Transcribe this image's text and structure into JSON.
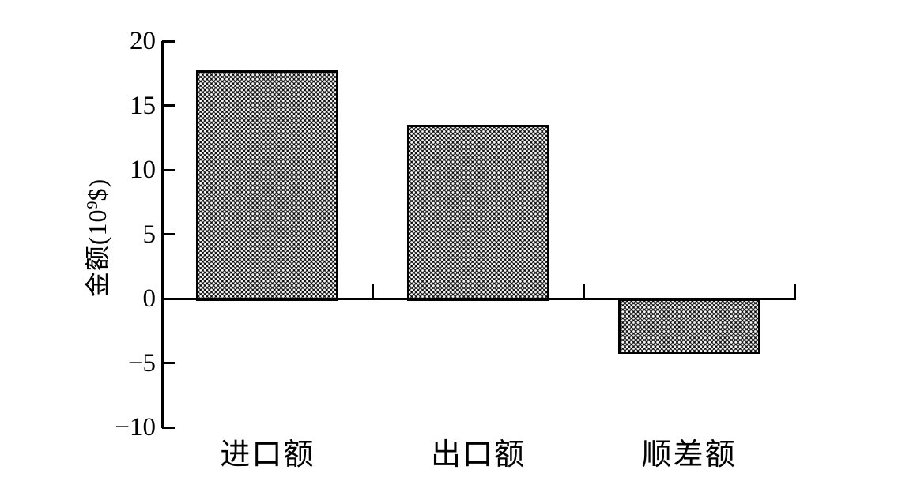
{
  "chart_data": {
    "type": "bar",
    "categories": [
      "进口额",
      "出口额",
      "顺差额"
    ],
    "values": [
      17.7,
      13.5,
      -4.2
    ],
    "ylabel": "金额(10⁹$)",
    "ylabel_parts": {
      "prefix": "金额(10",
      "superscript": "9",
      "suffix": "$)"
    },
    "xlabel": "",
    "ylim": [
      -10,
      20
    ],
    "yticks": [
      20,
      15,
      10,
      5,
      0,
      -5,
      -10
    ],
    "ytick_labels": [
      "20",
      "15",
      "10",
      "5",
      "0",
      "−5",
      "−10"
    ],
    "grid": false,
    "legend": "none",
    "style": {
      "bar_fill_pattern": "dense-white-dots-on-black",
      "bar_border_color": "#000000",
      "axis_color": "#000000",
      "background_color": "#ffffff",
      "text_color": "#000000"
    }
  }
}
